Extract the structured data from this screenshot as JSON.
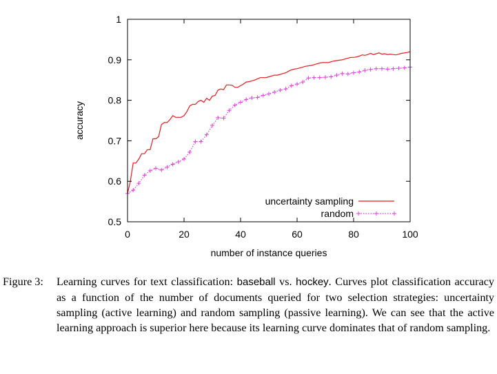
{
  "chart_data": {
    "type": "line",
    "xlabel": "number of instance queries",
    "ylabel": "accuracy",
    "xlim": [
      0,
      100
    ],
    "ylim": [
      0.5,
      1
    ],
    "x_ticks": [
      0,
      20,
      40,
      60,
      80,
      100
    ],
    "y_ticks": [
      0.5,
      0.6,
      0.7,
      0.8,
      0.9,
      1
    ],
    "y_tick_labels": [
      "0.5",
      "0.6",
      "0.7",
      "0.8",
      "0.9",
      "1"
    ],
    "legend_position": "bottom-right",
    "grid": false,
    "series": [
      {
        "name": "uncertainty sampling",
        "color": "#e41a1c",
        "style": "solid",
        "x": [
          0,
          1,
          2,
          3,
          4,
          5,
          6,
          7,
          8,
          9,
          10,
          11,
          12,
          13,
          14,
          15,
          16,
          17,
          18,
          19,
          20,
          21,
          22,
          23,
          24,
          25,
          26,
          27,
          28,
          29,
          30,
          31,
          32,
          33,
          34,
          35,
          36,
          37,
          38,
          39,
          40,
          41,
          42,
          43,
          44,
          45,
          46,
          47,
          48,
          49,
          50,
          51,
          52,
          53,
          54,
          55,
          56,
          57,
          58,
          59,
          60,
          61,
          62,
          63,
          64,
          65,
          66,
          67,
          68,
          69,
          70,
          71,
          72,
          73,
          74,
          75,
          76,
          77,
          78,
          79,
          80,
          81,
          82,
          83,
          84,
          85,
          86,
          87,
          88,
          89,
          90,
          91,
          92,
          93,
          94,
          95,
          96,
          97,
          98,
          99,
          100
        ],
        "values": [
          0.57,
          0.6,
          0.645,
          0.645,
          0.655,
          0.668,
          0.668,
          0.678,
          0.678,
          0.705,
          0.705,
          0.71,
          0.74,
          0.745,
          0.745,
          0.752,
          0.762,
          0.758,
          0.758,
          0.758,
          0.762,
          0.772,
          0.786,
          0.79,
          0.79,
          0.797,
          0.8,
          0.795,
          0.805,
          0.8,
          0.81,
          0.812,
          0.825,
          0.828,
          0.826,
          0.838,
          0.838,
          0.837,
          0.832,
          0.832,
          0.836,
          0.84,
          0.845,
          0.846,
          0.848,
          0.85,
          0.853,
          0.856,
          0.856,
          0.856,
          0.858,
          0.86,
          0.862,
          0.862,
          0.864,
          0.866,
          0.868,
          0.872,
          0.875,
          0.877,
          0.878,
          0.88,
          0.882,
          0.884,
          0.885,
          0.886,
          0.888,
          0.89,
          0.892,
          0.893,
          0.893,
          0.893,
          0.895,
          0.897,
          0.898,
          0.899,
          0.9,
          0.902,
          0.904,
          0.906,
          0.906,
          0.907,
          0.909,
          0.912,
          0.911,
          0.913,
          0.916,
          0.913,
          0.915,
          0.917,
          0.914,
          0.915,
          0.913,
          0.914,
          0.913,
          0.912,
          0.914,
          0.916,
          0.917,
          0.918,
          0.92
        ]
      },
      {
        "name": "random",
        "color": "#e040e0",
        "style": "dotted",
        "x": [
          0,
          2,
          4,
          6,
          8,
          10,
          12,
          14,
          16,
          18,
          20,
          22,
          24,
          26,
          28,
          30,
          32,
          34,
          36,
          38,
          40,
          42,
          44,
          46,
          48,
          50,
          52,
          54,
          56,
          58,
          60,
          62,
          64,
          66,
          68,
          70,
          72,
          74,
          76,
          78,
          80,
          82,
          84,
          86,
          88,
          90,
          92,
          94,
          96,
          98,
          100
        ],
        "values": [
          0.57,
          0.578,
          0.595,
          0.615,
          0.626,
          0.632,
          0.628,
          0.635,
          0.642,
          0.648,
          0.655,
          0.672,
          0.698,
          0.698,
          0.715,
          0.738,
          0.757,
          0.756,
          0.775,
          0.788,
          0.795,
          0.802,
          0.806,
          0.807,
          0.812,
          0.816,
          0.82,
          0.825,
          0.828,
          0.836,
          0.84,
          0.845,
          0.855,
          0.856,
          0.856,
          0.857,
          0.858,
          0.862,
          0.866,
          0.865,
          0.868,
          0.87,
          0.874,
          0.876,
          0.878,
          0.878,
          0.877,
          0.878,
          0.879,
          0.88,
          0.882
        ]
      }
    ]
  },
  "caption": {
    "label": "Figure 3:",
    "text_1": "Learning curves for text classification: ",
    "term_1": "baseball",
    "text_2": " vs. ",
    "term_2": "hockey",
    "text_3": ". Curves plot classification accuracy as a function of the number of documents queried for two selection strategies: uncertainty sampling (active learning) and random sampling (passive learning). We can see that the active learning approach is superior here because its learning curve dominates that of random sampling."
  }
}
